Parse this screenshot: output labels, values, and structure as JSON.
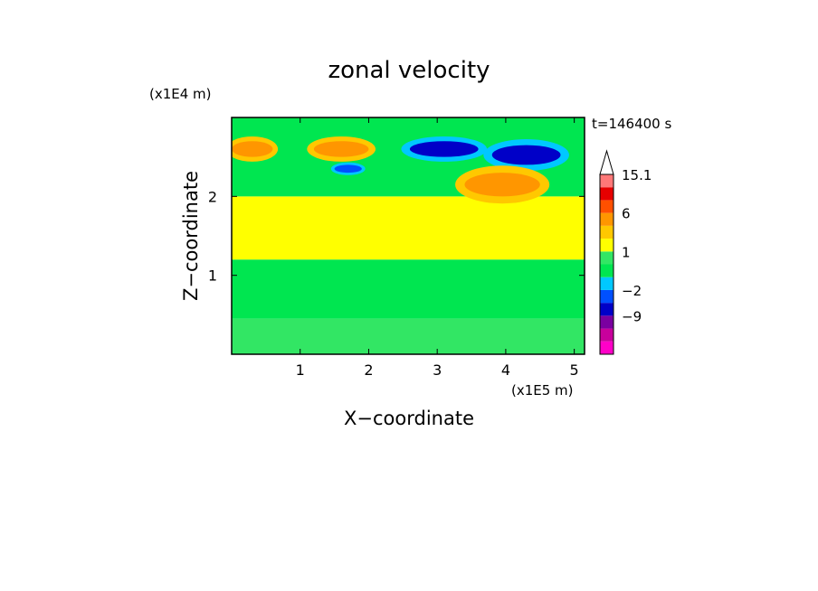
{
  "chart_data": {
    "type": "heatmap",
    "title": "zonal velocity",
    "xlabel": "X−coordinate",
    "ylabel": "Z−coordinate",
    "x_unit": "(x1E5 m)",
    "y_unit": "(x1E4 m)",
    "time_label": "t=146400 s",
    "xlim": [
      0,
      5.15
    ],
    "ylim": [
      0,
      3.0
    ],
    "x_ticks": [
      1,
      2,
      3,
      4,
      5
    ],
    "y_ticks": [
      1,
      2
    ],
    "colorbar": {
      "levels": [
        -15,
        -12,
        -9,
        -6,
        -2,
        -1,
        0,
        1,
        2,
        3,
        6,
        9,
        12,
        15.1
      ],
      "labels": [
        {
          "value": 15.1,
          "text": "15.1"
        },
        {
          "value": 6,
          "text": "6"
        },
        {
          "value": 1,
          "text": "1"
        },
        {
          "value": -2,
          "text": "−2"
        },
        {
          "value": -9,
          "text": "−9"
        }
      ],
      "colors": [
        "#ff00c8",
        "#c8009c",
        "#7a00a0",
        "#0000c8",
        "#0050ff",
        "#00c8ff",
        "#00e650",
        "#32e664",
        "#ffff00",
        "#ffc800",
        "#ff9600",
        "#ff5000",
        "#e60000",
        "#ff7878",
        "#ffc0c0"
      ]
    },
    "regions": [
      {
        "desc": "lower band",
        "x": [
          0.0,
          5.15
        ],
        "z": [
          0.0,
          0.45
        ],
        "value": 0.5
      },
      {
        "desc": "lower green layer",
        "x": [
          0.0,
          5.15
        ],
        "z": [
          0.45,
          1.2
        ],
        "value": -0.5
      },
      {
        "desc": "mid yellow layer",
        "x": [
          0.0,
          5.15
        ],
        "z": [
          1.2,
          2.0
        ],
        "value": 1.5
      },
      {
        "desc": "upper green layer",
        "x": [
          0.0,
          5.15
        ],
        "z": [
          2.0,
          3.0
        ],
        "value": -0.5
      },
      {
        "desc": "negative jet core",
        "x": [
          2.6,
          3.6
        ],
        "z": [
          2.5,
          2.7
        ],
        "value": -8
      },
      {
        "desc": "negative jet core",
        "x": [
          3.8,
          4.8
        ],
        "z": [
          2.4,
          2.65
        ],
        "value": -7
      },
      {
        "desc": "negative jet core",
        "x": [
          1.5,
          1.9
        ],
        "z": [
          2.3,
          2.4
        ],
        "value": -5
      },
      {
        "desc": "positive core",
        "x": [
          0.0,
          0.6
        ],
        "z": [
          2.5,
          2.7
        ],
        "value": 4
      },
      {
        "desc": "positive core",
        "x": [
          1.2,
          2.0
        ],
        "z": [
          2.5,
          2.7
        ],
        "value": 4
      },
      {
        "desc": "positive core",
        "x": [
          3.4,
          4.5
        ],
        "z": [
          2.0,
          2.3
        ],
        "value": 4
      }
    ]
  }
}
